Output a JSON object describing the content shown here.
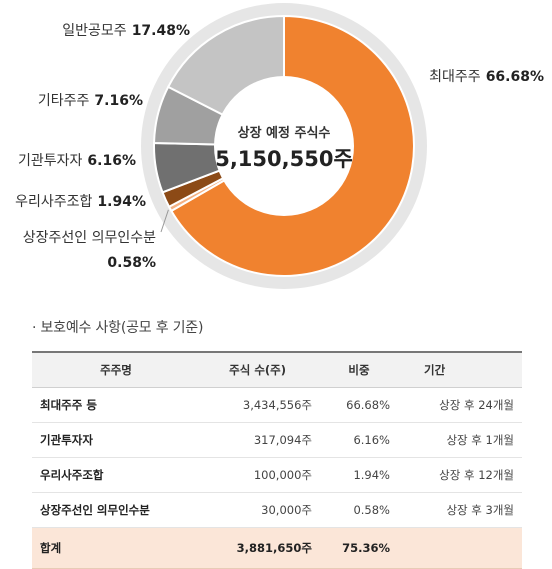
{
  "chart_data": {
    "type": "pie",
    "donut": true,
    "center_caption": "상장 예정 주식수",
    "center_value": "5,150,550주",
    "slices": [
      {
        "label": "최대주주",
        "value": 66.68,
        "value_text": "66.68%",
        "color": "#f0822f"
      },
      {
        "label": "상장주선인 의무인수분",
        "value": 0.58,
        "value_text": "0.58%",
        "color": "#f4b183"
      },
      {
        "label": "우리사주조합",
        "value": 1.94,
        "value_text": "1.94%",
        "color": "#8c4a16"
      },
      {
        "label": "기관투자자",
        "value": 6.16,
        "value_text": "6.16%",
        "color": "#707070"
      },
      {
        "label": "기타주주",
        "value": 7.16,
        "value_text": "7.16%",
        "color": "#a0a0a0"
      },
      {
        "label": "일반공모주",
        "value": 17.48,
        "value_text": "17.48%",
        "color": "#c4c4c4"
      }
    ],
    "ring_color": "#e6e6e6"
  },
  "section_title": "· 보호예수 사항(공모 후 기준)",
  "table": {
    "headers": [
      "주주명",
      "주식 수(주)",
      "비중",
      "기간"
    ],
    "rows": [
      {
        "name": "최대주주 등",
        "shares": "3,434,556주",
        "pct": "66.68%",
        "period": "상장 후 24개월"
      },
      {
        "name": "기관투자자",
        "shares": "317,094주",
        "pct": "6.16%",
        "period": "상장 후 1개월"
      },
      {
        "name": "우리사주조합",
        "shares": "100,000주",
        "pct": "1.94%",
        "period": "상장 후 12개월"
      },
      {
        "name": "상장주선인 의무인수분",
        "shares": "30,000주",
        "pct": "0.58%",
        "period": "상장 후 3개월"
      }
    ],
    "total": {
      "name": "합계",
      "shares": "3,881,650주",
      "pct": "75.36%",
      "period": ""
    }
  }
}
